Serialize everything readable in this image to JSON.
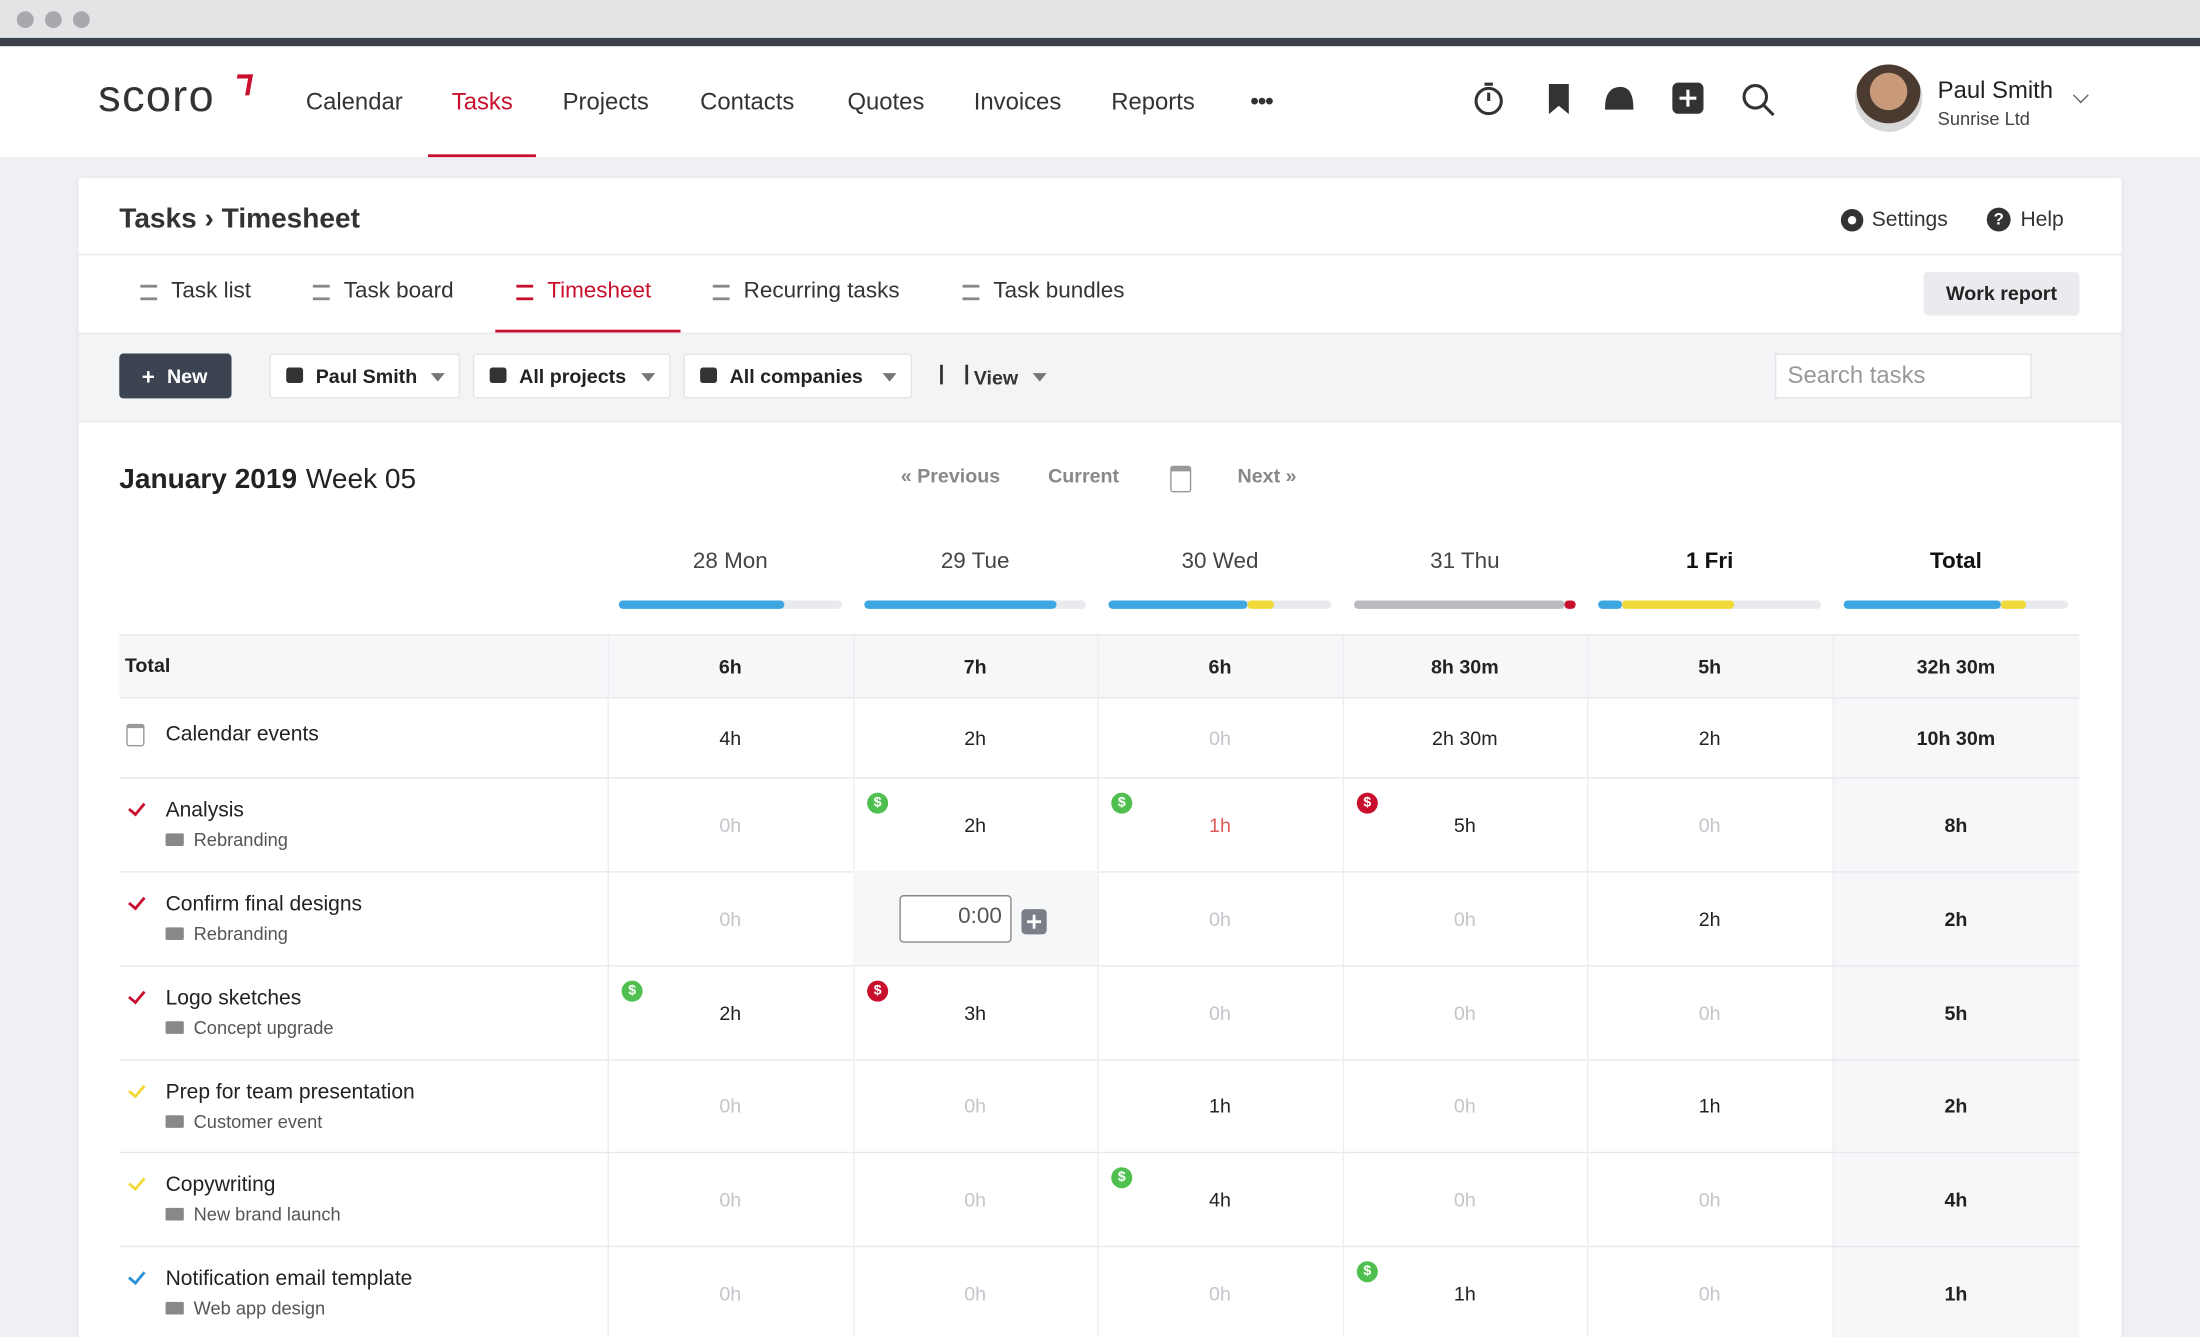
{
  "header": {
    "logo": "scoro",
    "nav": [
      "Calendar",
      "Tasks",
      "Projects",
      "Contacts",
      "Quotes",
      "Invoices",
      "Reports"
    ],
    "active_nav": 1,
    "user": {
      "name": "Paul Smith",
      "company": "Sunrise Ltd"
    }
  },
  "page": {
    "breadcrumb": "Tasks › Timesheet",
    "settings": "Settings",
    "help": "Help",
    "tabs": [
      "Task list",
      "Task board",
      "Timesheet",
      "Recurring tasks",
      "Task bundles"
    ],
    "active_tab": 2,
    "work_report": "Work report",
    "toolbar": {
      "new": "New",
      "filters": [
        "Paul Smith",
        "All projects",
        "All companies"
      ],
      "view": "View",
      "search_placeholder": "Search tasks"
    }
  },
  "timesheet": {
    "month": "January 2019",
    "week": "Week 05",
    "pager": [
      "« Previous",
      "Current",
      "Next »"
    ],
    "columns": [
      "28 Mon",
      "29 Tue",
      "30 Wed",
      "31 Thu",
      "1 Fri",
      "Total"
    ],
    "bold_columns": [
      4,
      5
    ],
    "badge_symbol": "$",
    "total_row": {
      "label": "Total",
      "cells": [
        "6h",
        "7h",
        "6h",
        "8h 30m",
        "5h",
        "32h 30m"
      ]
    },
    "calendar_row": {
      "label": "Calendar events",
      "cells": [
        "4h",
        "2h",
        "0h",
        "2h 30m",
        "2h",
        "10h 30m"
      ]
    },
    "tasks": [
      {
        "name": "Analysis",
        "project": "Rebranding",
        "check": "#c8102e",
        "cells": [
          "0h",
          "2h",
          "1h",
          "5h",
          "0h",
          "8h"
        ],
        "badges": [
          [
            1,
            "#4fc04f"
          ],
          [
            2,
            "#4fc04f"
          ],
          [
            3,
            "#c8102e"
          ]
        ],
        "alert_col": 2
      },
      {
        "name": "Confirm final designs",
        "project": "Rebranding",
        "check": "#c8102e",
        "cells": [
          "0h",
          null,
          "0h",
          "0h",
          "2h",
          "2h"
        ],
        "badges": [],
        "editing": {
          "col": 1,
          "value": "0:00"
        }
      },
      {
        "name": "Logo sketches",
        "project": "Concept upgrade",
        "check": "#c8102e",
        "cells": [
          "2h",
          "3h",
          "0h",
          "0h",
          "0h",
          "5h"
        ],
        "badges": [
          [
            0,
            "#4fc04f"
          ],
          [
            1,
            "#c8102e"
          ]
        ]
      },
      {
        "name": "Prep for team presentation",
        "project": "Customer event",
        "check": "#f2d93a",
        "cells": [
          "0h",
          "0h",
          "1h",
          "0h",
          "1h",
          "2h"
        ],
        "badges": []
      },
      {
        "name": "Copywriting",
        "project": "New brand launch",
        "check": "#f2d93a",
        "cells": [
          "0h",
          "0h",
          "4h",
          "0h",
          "0h",
          "4h"
        ],
        "badges": [
          [
            2,
            "#4fc04f"
          ]
        ]
      },
      {
        "name": "Notification email template",
        "project": "Web app design",
        "check": "#2a8fd6",
        "cells": [
          "0h",
          "0h",
          "0h",
          "1h",
          "0h",
          "1h"
        ],
        "badges": [
          [
            3,
            "#4fc04f"
          ]
        ]
      }
    ]
  }
}
